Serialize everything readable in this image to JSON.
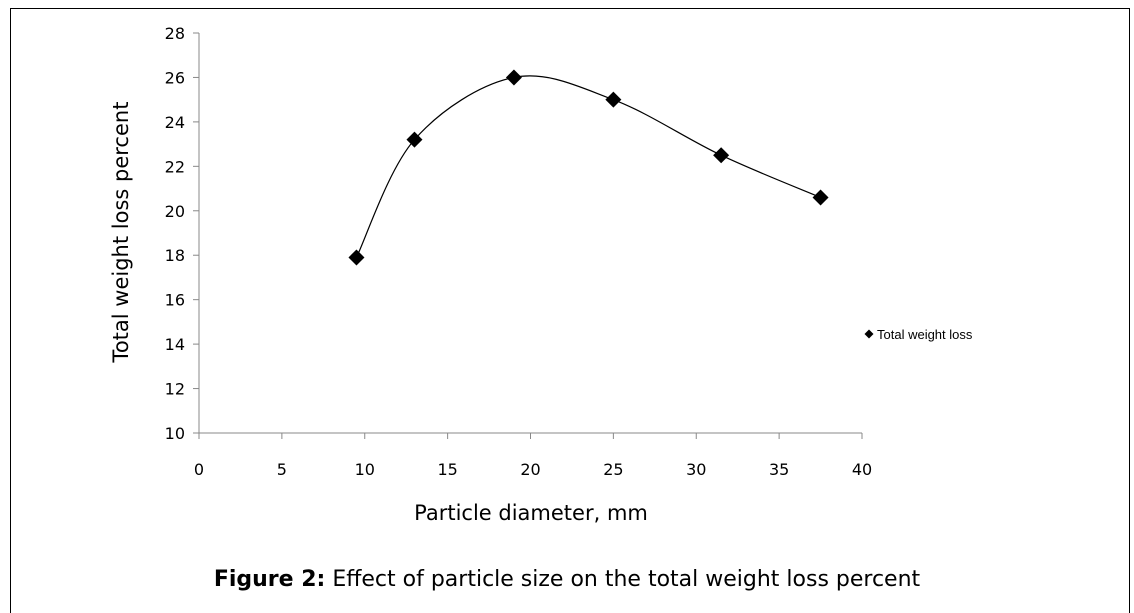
{
  "chart_data": {
    "type": "scatter",
    "xlabel": "Particle diameter, mm",
    "ylabel": "Total weight loss percent",
    "xlim": [
      0,
      40
    ],
    "ylim": [
      10,
      28
    ],
    "x_ticks": [
      0,
      5,
      10,
      15,
      20,
      25,
      30,
      35,
      40
    ],
    "y_ticks": [
      10,
      12,
      14,
      16,
      18,
      20,
      22,
      24,
      26,
      28
    ],
    "grid": false,
    "smooth_line": true,
    "legend_position": "right",
    "series": [
      {
        "name": "Total weight loss",
        "marker": "diamond",
        "color": "#000000",
        "x": [
          9.5,
          13,
          19,
          25,
          31.5,
          37.5
        ],
        "y": [
          17.9,
          23.2,
          26.0,
          25.0,
          22.5,
          20.6
        ]
      }
    ]
  },
  "caption": {
    "label": "Figure 2:",
    "text": "Effect of particle size on the total weight loss percent"
  }
}
